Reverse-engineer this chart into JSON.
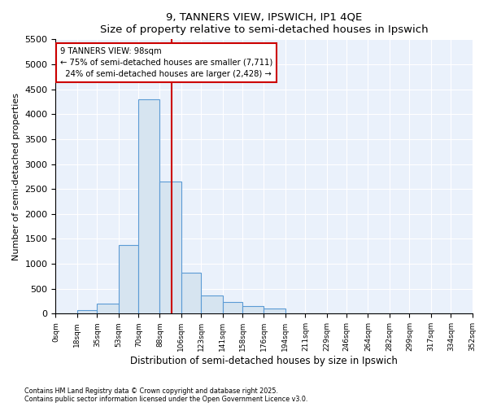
{
  "title1": "9, TANNERS VIEW, IPSWICH, IP1 4QE",
  "title2": "Size of property relative to semi-detached houses in Ipswich",
  "xlabel": "Distribution of semi-detached houses by size in Ipswich",
  "ylabel": "Number of semi-detached properties",
  "footnote1": "Contains HM Land Registry data © Crown copyright and database right 2025.",
  "footnote2": "Contains public sector information licensed under the Open Government Licence v3.0.",
  "property_size": 98,
  "property_label": "9 TANNERS VIEW: 98sqm",
  "pct_smaller": 75,
  "pct_larger": 24,
  "count_smaller": 7711,
  "count_larger": 2428,
  "bin_edges": [
    0,
    18,
    35,
    53,
    70,
    88,
    106,
    123,
    141,
    158,
    176,
    194,
    211,
    229,
    246,
    264,
    282,
    299,
    317,
    334,
    352
  ],
  "bar_heights": [
    10,
    70,
    200,
    1380,
    4300,
    2650,
    820,
    360,
    230,
    150,
    100,
    10,
    5,
    5,
    5,
    5,
    2,
    2,
    2,
    2
  ],
  "bar_color": "#d6e4f0",
  "bar_edge_color": "#5b9bd5",
  "annotation_box_color": "#cc0000",
  "line_color": "#cc0000",
  "background_color": "#eaf1fb",
  "ylim": [
    0,
    5500
  ],
  "yticks": [
    0,
    500,
    1000,
    1500,
    2000,
    2500,
    3000,
    3500,
    4000,
    4500,
    5000,
    5500
  ],
  "tick_labels": [
    "0sqm",
    "18sqm",
    "35sqm",
    "53sqm",
    "70sqm",
    "88sqm",
    "106sqm",
    "123sqm",
    "141sqm",
    "158sqm",
    "176sqm",
    "194sqm",
    "211sqm",
    "229sqm",
    "246sqm",
    "264sqm",
    "282sqm",
    "299sqm",
    "317sqm",
    "334sqm",
    "352sqm"
  ],
  "fig_width": 6.0,
  "fig_height": 5.0,
  "dpi": 100
}
